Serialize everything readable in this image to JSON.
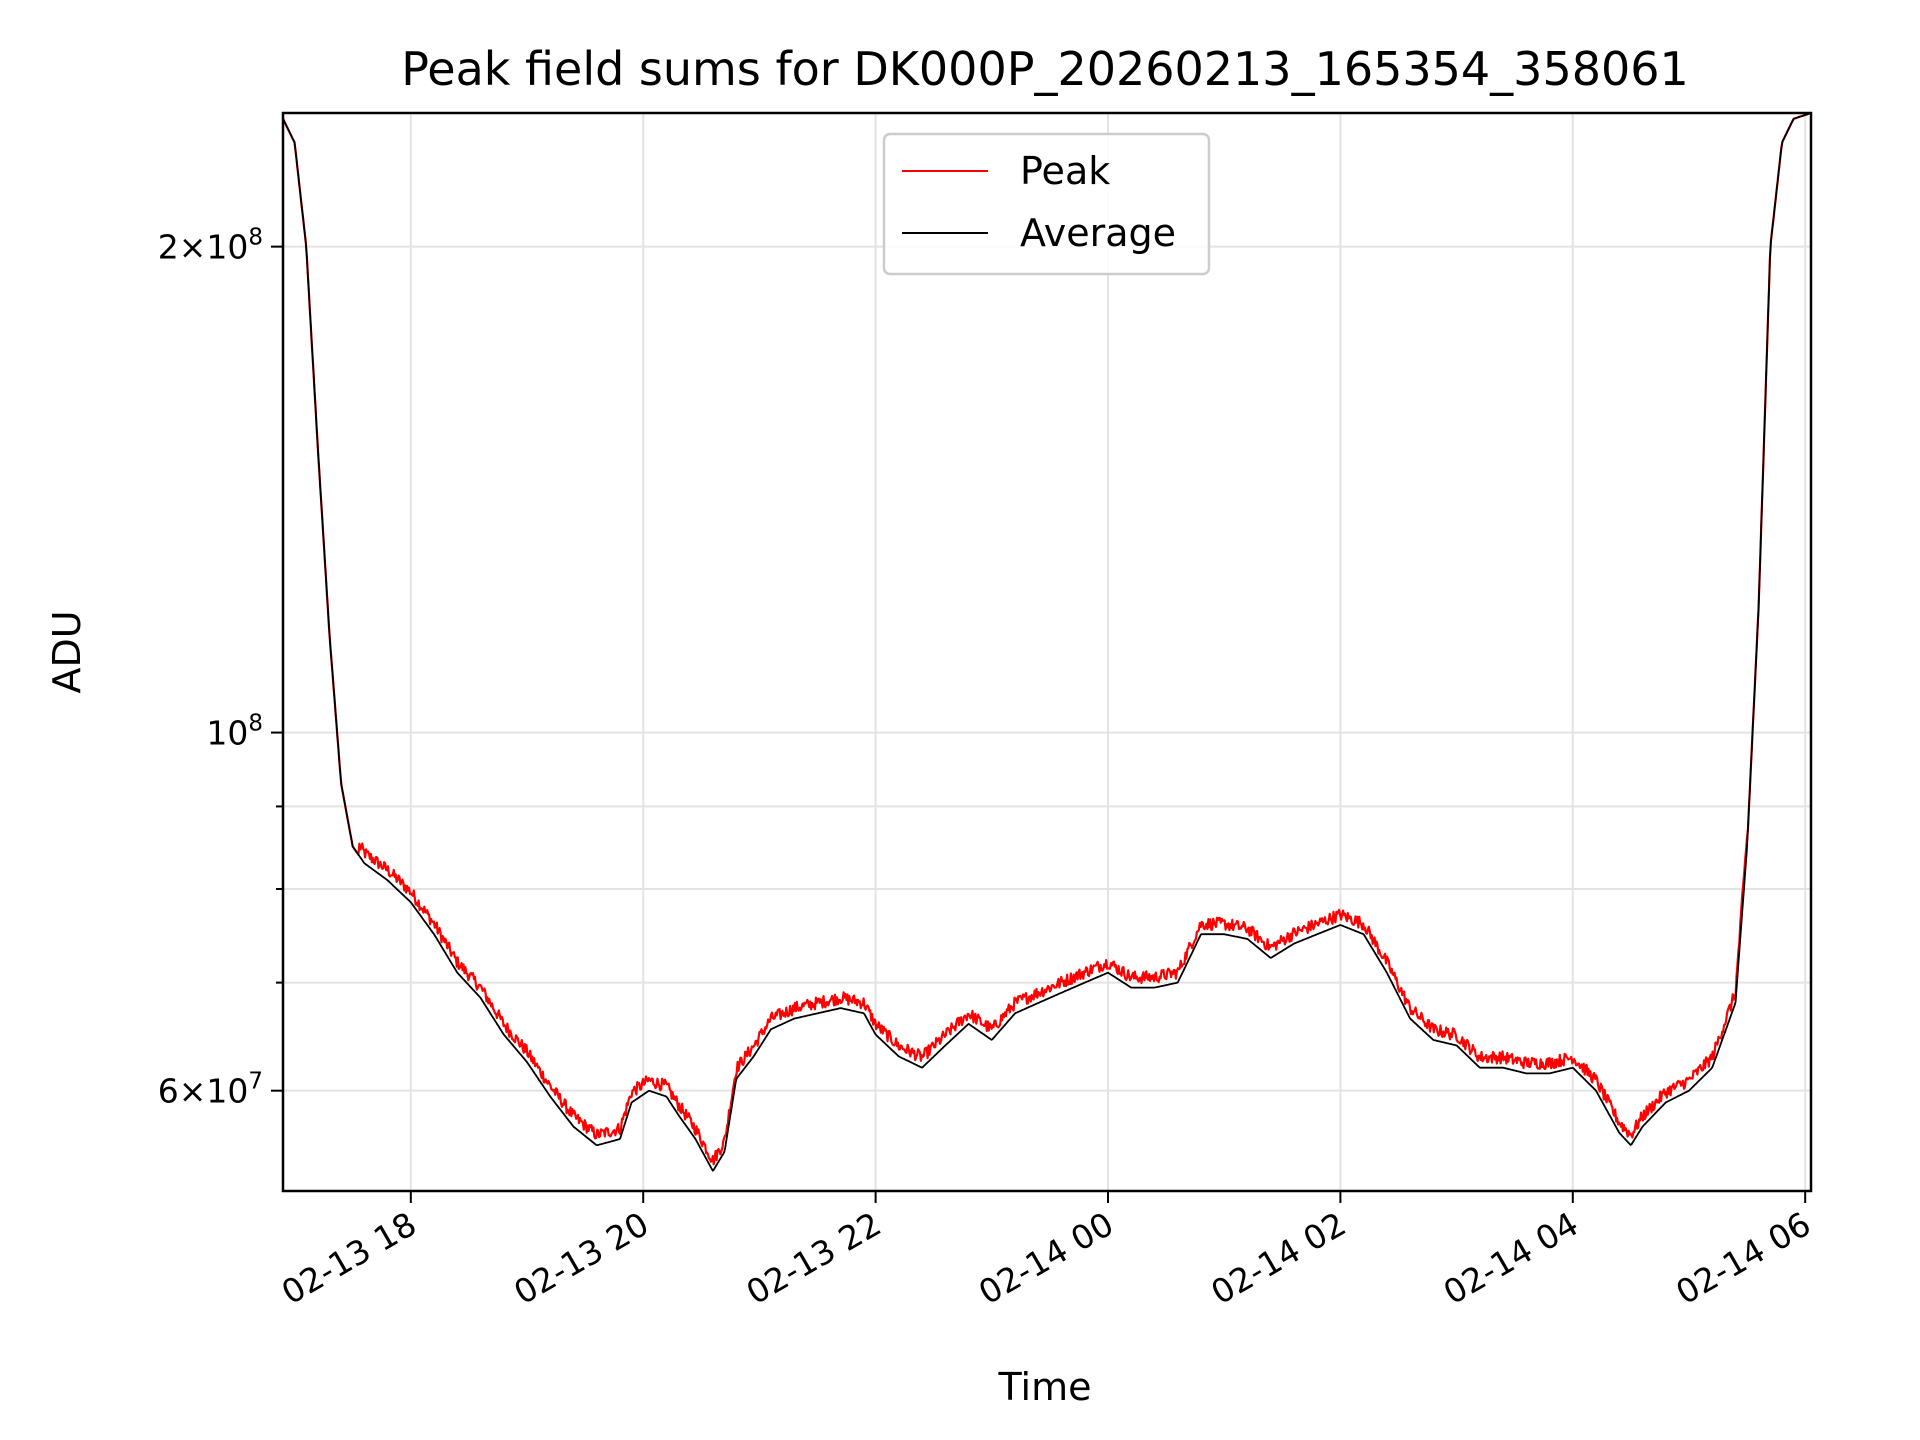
{
  "chart_data": {
    "type": "line",
    "title": "Peak field sums for DK000P_20260213_165354_358061",
    "xlabel": "Time",
    "ylabel": "ADU",
    "x_unit": "hours since 02-13 00:00",
    "xlim": [
      16.9,
      30.05
    ],
    "ylim": [
      52000000,
      242000000
    ],
    "yscale": "log",
    "grid": true,
    "legend_position": "top-center",
    "x_ticks": [
      {
        "value": 18,
        "label": "02-13 18"
      },
      {
        "value": 20,
        "label": "02-13 20"
      },
      {
        "value": 22,
        "label": "02-13 22"
      },
      {
        "value": 24,
        "label": "02-14 00"
      },
      {
        "value": 26,
        "label": "02-14 02"
      },
      {
        "value": 28,
        "label": "02-14 04"
      },
      {
        "value": 30,
        "label": "02-14 06"
      }
    ],
    "y_major_ticks": [
      {
        "value": 200000000,
        "mantissa": "2",
        "exponent": "8"
      },
      {
        "value": 100000000,
        "mantissa": "",
        "exponent": "8"
      },
      {
        "value": 60000000,
        "mantissa": "6",
        "exponent": "7"
      }
    ],
    "y_minor_ticks": [
      70000000,
      80000000,
      90000000
    ],
    "series": [
      {
        "name": "Peak",
        "color": "#ff0000",
        "jitter": 0.018
      },
      {
        "name": "Average",
        "color": "#000000",
        "jitter": 0.0
      }
    ],
    "x": [
      16.9,
      17.0,
      17.1,
      17.2,
      17.3,
      17.4,
      17.5,
      17.6,
      17.7,
      17.8,
      18.0,
      18.2,
      18.4,
      18.6,
      18.8,
      19.0,
      19.2,
      19.4,
      19.6,
      19.8,
      19.9,
      20.05,
      20.2,
      20.3,
      20.45,
      20.6,
      20.7,
      20.8,
      20.95,
      21.1,
      21.3,
      21.5,
      21.7,
      21.9,
      22.0,
      22.2,
      22.4,
      22.6,
      22.8,
      23.0,
      23.2,
      23.4,
      23.6,
      23.8,
      24.0,
      24.2,
      24.4,
      24.6,
      24.8,
      25.0,
      25.2,
      25.4,
      25.6,
      25.8,
      26.0,
      26.2,
      26.4,
      26.6,
      26.8,
      27.0,
      27.2,
      27.4,
      27.6,
      27.8,
      28.0,
      28.2,
      28.4,
      28.5,
      28.6,
      28.8,
      29.0,
      29.2,
      29.4,
      29.5,
      29.6,
      29.7,
      29.8,
      29.9,
      30.05
    ],
    "average": [
      240000000,
      232000000,
      200000000,
      150000000,
      115000000,
      93000000,
      85000000,
      83000000,
      82000000,
      81000000,
      78500000,
      75000000,
      71000000,
      68500000,
      65000000,
      62500000,
      59500000,
      57000000,
      55500000,
      56000000,
      59000000,
      60000000,
      59500000,
      58000000,
      56000000,
      53500000,
      55000000,
      61000000,
      63000000,
      65500000,
      66500000,
      67000000,
      67500000,
      67000000,
      65000000,
      63000000,
      62000000,
      64000000,
      66000000,
      64500000,
      67000000,
      68000000,
      69000000,
      70000000,
      71000000,
      69500000,
      69500000,
      70000000,
      75000000,
      75000000,
      74500000,
      72500000,
      74000000,
      75000000,
      76000000,
      75000000,
      71000000,
      66500000,
      64500000,
      64000000,
      62000000,
      62000000,
      61500000,
      61500000,
      62000000,
      60000000,
      56500000,
      55500000,
      57000000,
      59000000,
      60000000,
      62000000,
      68000000,
      85000000,
      120000000,
      200000000,
      232000000,
      240000000,
      242000000
    ]
  }
}
